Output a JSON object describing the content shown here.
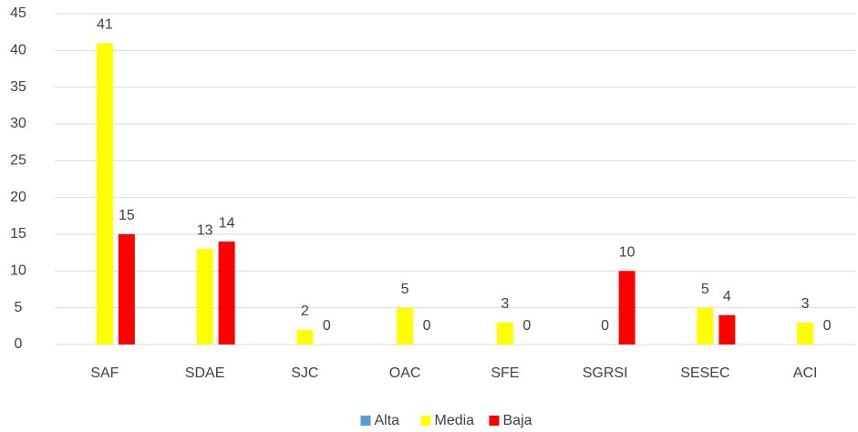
{
  "chart_data": {
    "type": "bar",
    "categories": [
      "SAF",
      "SDAE",
      "SJC",
      "OAC",
      "SFE",
      "SGRSI",
      "SESEC",
      "ACI"
    ],
    "series": [
      {
        "name": "Alta",
        "color": "#5b9bd5",
        "values": [
          null,
          null,
          null,
          null,
          null,
          null,
          null,
          null
        ]
      },
      {
        "name": "Media",
        "color": "#ffff00",
        "values": [
          41,
          13,
          2,
          5,
          3,
          0,
          5,
          3
        ]
      },
      {
        "name": "Baja",
        "color": "#ff0000",
        "values": [
          15,
          14,
          0,
          0,
          0,
          10,
          4,
          0
        ]
      }
    ],
    "ylim": [
      0,
      45
    ],
    "yticks": [
      0,
      5,
      10,
      15,
      20,
      25,
      30,
      35,
      40,
      45
    ],
    "grid": true,
    "legend": "bottom"
  }
}
